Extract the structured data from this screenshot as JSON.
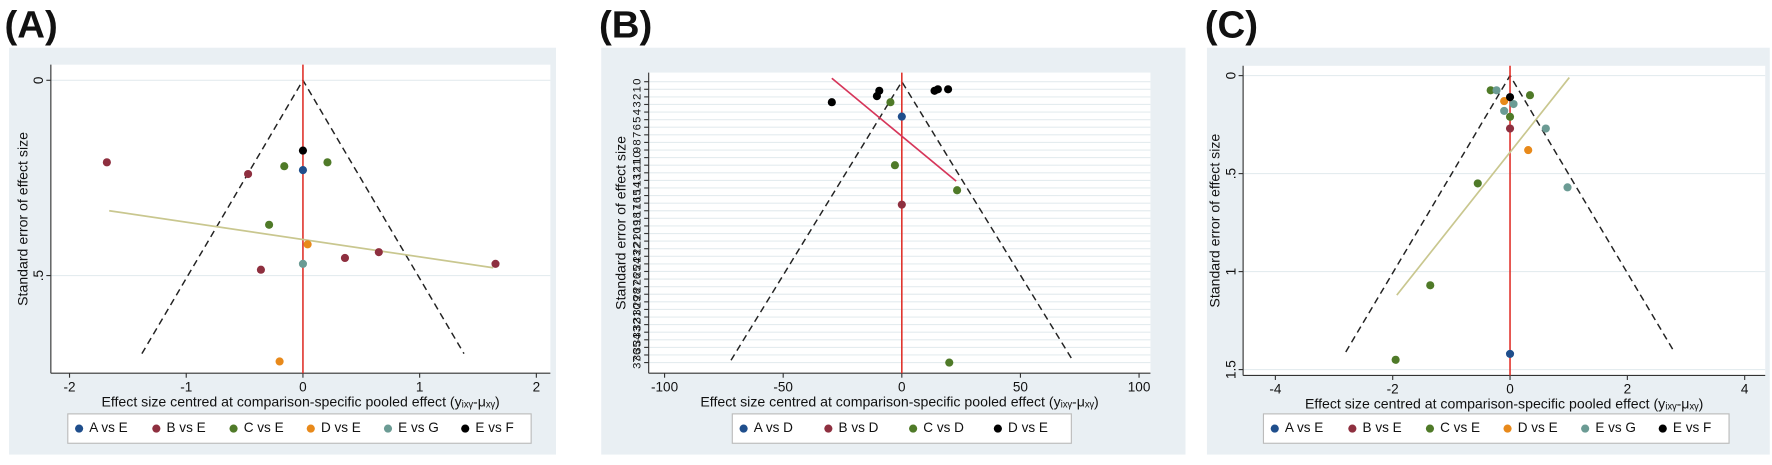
{
  "chart_data": [
    {
      "type": "scatter",
      "title": "(A)",
      "xlabel": "Effect size centred at comparison-specific pooled effect (yᵢₓᵧ-μₓᵧ)",
      "ylabel": "Standard error of effect size",
      "xlim": [
        -2.16,
        2.12
      ],
      "ylim": [
        -0.04,
        0.75
      ],
      "y_inverted": true,
      "grid": true,
      "legend": "bottom",
      "xticks": [
        -2,
        -1,
        0,
        1,
        2
      ],
      "yticks": [
        0,
        {
          "value": 0.5,
          "label": ".5"
        }
      ],
      "reference_line": {
        "x": 0,
        "color": "#e0312a"
      },
      "funnel": {
        "x": [
          -1.38,
          0,
          1.38
        ],
        "y": [
          0.7,
          0,
          0.7
        ]
      },
      "regression_line": {
        "x": [
          -1.66,
          1.63
        ],
        "y": [
          0.334,
          0.48
        ],
        "color": "#c9c78f"
      },
      "series": [
        {
          "name": "A vs E",
          "color": "#1f4e8c",
          "x": [
            0
          ],
          "values": [
            0.23
          ]
        },
        {
          "name": "B vs E",
          "color": "#8e2f3f",
          "x": [
            -1.68,
            -0.47,
            -0.36,
            0.36,
            0.65,
            1.65
          ],
          "values": [
            0.21,
            0.24,
            0.485,
            0.455,
            0.44,
            0.47
          ]
        },
        {
          "name": "C vs E",
          "color": "#4f7a28",
          "x": [
            -0.16,
            0.21,
            -0.29
          ],
          "values": [
            0.22,
            0.21,
            0.37
          ]
        },
        {
          "name": "D vs E",
          "color": "#e8891a",
          "x": [
            0.04,
            -0.2
          ],
          "values": [
            0.42,
            0.72
          ]
        },
        {
          "name": "E vs G",
          "color": "#6b9b94",
          "x": [
            0
          ],
          "values": [
            0.47
          ]
        },
        {
          "name": "E vs F",
          "color": "#000000",
          "x": [
            0
          ],
          "values": [
            0.18
          ]
        }
      ]
    },
    {
      "type": "scatter",
      "title": "(B)",
      "xlabel": "Effect size centred at comparison-specific pooled effect (yᵢₓᵧ-μₓᵧ)",
      "ylabel": "Standard error of effect size",
      "xlim": [
        -106.7,
        104.8
      ],
      "ylim": [
        -1.2,
        38.4
      ],
      "y_inverted": true,
      "grid": true,
      "legend": "bottom",
      "xticks": [
        -100,
        -50,
        0,
        50,
        100
      ],
      "yticks": [
        0,
        1,
        2,
        3,
        4,
        5,
        6,
        7,
        8,
        9,
        10,
        11,
        12,
        13,
        14,
        15,
        16,
        17,
        18,
        19,
        20,
        21,
        22,
        23,
        24,
        25,
        26,
        27,
        28,
        29,
        30,
        31,
        32,
        33,
        34,
        35,
        36,
        37
      ],
      "reference_line": {
        "x": 0,
        "color": "#e0312a"
      },
      "funnel": {
        "x": [
          -72,
          0,
          72
        ],
        "y": [
          36.7,
          0,
          36.7
        ]
      },
      "regression_line": {
        "x": [
          -29.5,
          22.9
        ],
        "y": [
          -0.45,
          13.1
        ],
        "color": "#d6365a"
      },
      "series": [
        {
          "name": "A vs D",
          "color": "#1f4e8c",
          "x": [
            0
          ],
          "values": [
            4.6
          ]
        },
        {
          "name": "B vs D",
          "color": "#8e2f3f",
          "x": [
            0
          ],
          "values": [
            16.2
          ]
        },
        {
          "name": "C vs D",
          "color": "#4f7a28",
          "x": [
            -4.8,
            -2.9,
            23.3,
            20
          ],
          "values": [
            2.7,
            11.0,
            14.3,
            37.0
          ]
        },
        {
          "name": "D vs E",
          "color": "#000000",
          "x": [
            -29.5,
            -9.5,
            -10.5,
            13.8,
            15.2,
            19.5
          ],
          "values": [
            2.7,
            1.2,
            1.9,
            1.2,
            1.0,
            1.0
          ]
        }
      ]
    },
    {
      "type": "scatter",
      "title": "(C)",
      "xlabel": "Effect size centred at comparison-specific pooled effect (yᵢₓᵧ-μₓᵧ)",
      "ylabel": "Standard error of effect size",
      "xlim": [
        -4.55,
        4.35
      ],
      "ylim": [
        -0.05,
        1.53
      ],
      "y_inverted": true,
      "grid": true,
      "legend": "bottom",
      "xticks": [
        -4,
        -2,
        0,
        2,
        4
      ],
      "yticks": [
        0,
        {
          "value": 0.5,
          "label": ".5"
        },
        1,
        1.5
      ],
      "reference_line": {
        "x": 0,
        "color": "#e0312a"
      },
      "funnel": {
        "x": [
          -2.8,
          0,
          2.8
        ],
        "y": [
          1.41,
          0,
          1.41
        ]
      },
      "regression_line": {
        "x": [
          -1.93,
          1.01
        ],
        "y": [
          1.12,
          0.01
        ],
        "color": "#c9c78f"
      },
      "series": [
        {
          "name": "A vs E",
          "color": "#1f4e8c",
          "x": [
            0
          ],
          "values": [
            1.42
          ]
        },
        {
          "name": "B vs E",
          "color": "#8e2f3f",
          "x": [
            0
          ],
          "values": [
            0.27
          ]
        },
        {
          "name": "C vs E",
          "color": "#4f7a28",
          "x": [
            -0.33,
            0.34,
            0,
            -0.55,
            -1.36,
            -1.95
          ],
          "values": [
            0.075,
            0.1,
            0.21,
            0.55,
            1.07,
            1.45
          ]
        },
        {
          "name": "D vs E",
          "color": "#e8891a",
          "x": [
            -0.1,
            0.31
          ],
          "values": [
            0.13,
            0.38
          ]
        },
        {
          "name": "E vs G",
          "color": "#6b9b94",
          "x": [
            -0.23,
            0.06,
            0.61,
            0.98,
            -0.1
          ],
          "values": [
            0.075,
            0.145,
            0.27,
            0.57,
            0.18
          ]
        },
        {
          "name": "E vs F",
          "color": "#000000",
          "x": [
            0
          ],
          "values": [
            0.11
          ]
        }
      ]
    }
  ]
}
